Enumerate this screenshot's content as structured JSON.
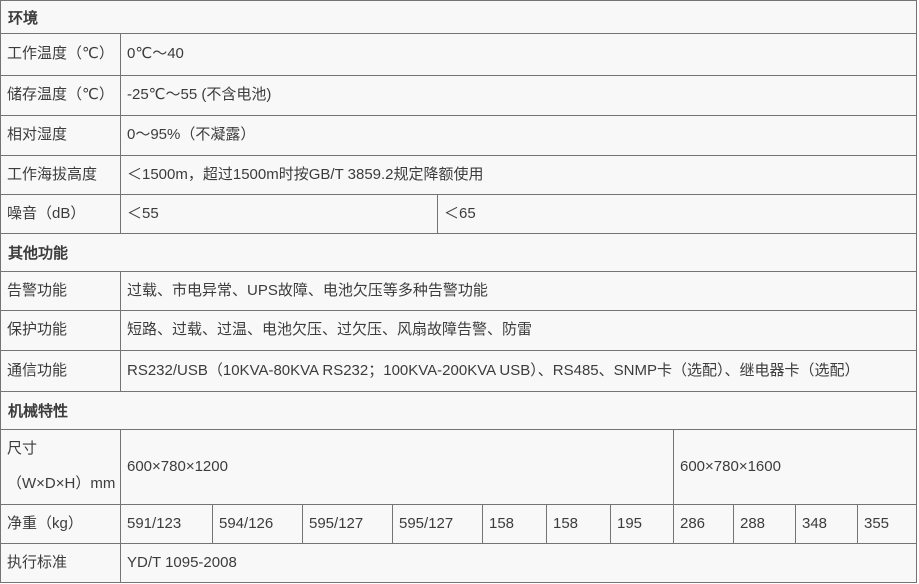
{
  "colors": {
    "border": "#747474",
    "background": "#f8f8f8",
    "text": "#3c3c3c"
  },
  "sections": [
    {
      "title": "环境",
      "rows": [
        {
          "label": "工作温度（℃）",
          "cells": [
            "0℃～40"
          ]
        },
        {
          "label": "储存温度（℃）",
          "cells": [
            "-25℃～55 (不含电池)"
          ]
        },
        {
          "label": "相对湿度",
          "cells": [
            "0～95%（不凝露）"
          ]
        },
        {
          "label": "工作海拔高度",
          "cells": [
            "＜1500m，超过1500m时按GB/T 3859.2规定降额使用"
          ]
        },
        {
          "label": "噪音（dB）",
          "cells": [
            "＜55",
            "＜65"
          ]
        }
      ]
    },
    {
      "title": "其他功能",
      "rows": [
        {
          "label": "告警功能",
          "cells": [
            "过载、市电异常、UPS故障、电池欠压等多种告警功能"
          ]
        },
        {
          "label": "保护功能",
          "cells": [
            "短路、过载、过温、电池欠压、过欠压、风扇故障告警、防雷"
          ]
        },
        {
          "label": "通信功能",
          "cells": [
            "RS232/USB（10KVA-80KVA RS232；100KVA-200KVA USB）、RS485、SNMP卡（选配）、继电器卡（选配）"
          ]
        }
      ]
    },
    {
      "title": "机械特性",
      "rows": [
        {
          "label_line1": "尺寸",
          "label_line2": "（W×D×H）mm",
          "cells": [
            "600×780×1200",
            "600×780×1600"
          ]
        },
        {
          "label": "净重（kg）",
          "cells": [
            "591/123",
            "594/126",
            "595/127",
            "595/127",
            "158",
            "158",
            "195",
            "286",
            "288",
            "348",
            "355"
          ]
        },
        {
          "label": "执行标准",
          "cells": [
            "YD/T 1095-2008"
          ]
        }
      ]
    }
  ]
}
